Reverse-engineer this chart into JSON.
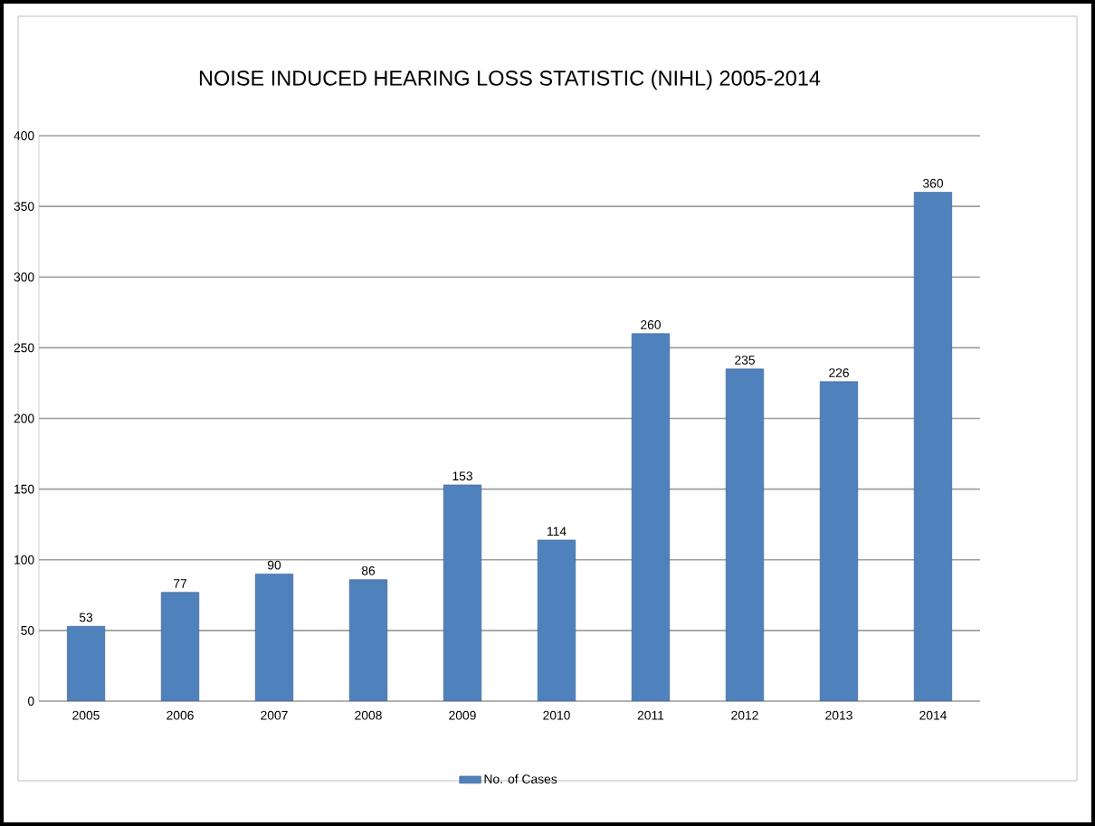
{
  "chart_data": {
    "type": "bar",
    "title": "NOISE INDUCED HEARING LOSS STATISTIC (NIHL) 2005-2014",
    "categories": [
      "2005",
      "2006",
      "2007",
      "2008",
      "2009",
      "2010",
      "2011",
      "2012",
      "2013",
      "2014"
    ],
    "series": [
      {
        "name": "No. of Cases",
        "color": "#4f81bd",
        "values": [
          53,
          77,
          90,
          86,
          153,
          114,
          260,
          235,
          226,
          360
        ]
      }
    ],
    "ylim": [
      0,
      400
    ],
    "yticks": [
      0,
      50,
      100,
      150,
      200,
      250,
      300,
      350,
      400
    ],
    "grid": "y",
    "legend": "bottom",
    "data_labels": true
  }
}
